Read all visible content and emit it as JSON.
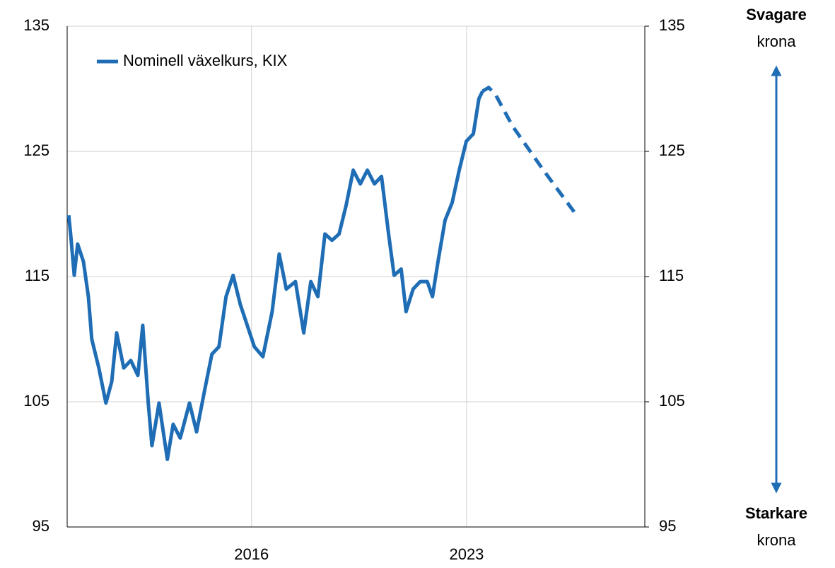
{
  "chart_data": {
    "type": "line",
    "xlim": [
      2010,
      2028.8
    ],
    "xticks": [
      2016,
      2023
    ],
    "ylim": [
      95,
      135
    ],
    "yticks": [
      95,
      105,
      115,
      125,
      135
    ],
    "y2lim": [
      95,
      135
    ],
    "y2ticks": [
      95,
      105,
      115,
      125,
      135
    ],
    "grid": true,
    "legend": "upper left",
    "series": [
      {
        "name": "Nominell växelkurs, KIX",
        "color": "#1f6db5",
        "x": [
          2010.05,
          2010.12,
          2010.23,
          2010.34,
          2010.53,
          2010.69,
          2010.8,
          2011.03,
          2011.26,
          2011.45,
          2011.61,
          2011.84,
          2012.07,
          2012.3,
          2012.46,
          2012.64,
          2012.76,
          2012.99,
          2013.26,
          2013.45,
          2013.68,
          2013.98,
          2014.21,
          2014.48,
          2014.71,
          2014.94,
          2015.17,
          2015.4,
          2015.63,
          2015.86,
          2016.09,
          2016.37,
          2016.67,
          2016.9,
          2017.13,
          2017.43,
          2017.7,
          2017.93,
          2018.16,
          2018.39,
          2018.62,
          2018.85,
          2019.08,
          2019.31,
          2019.54,
          2019.77,
          2020.0,
          2020.23,
          2020.46,
          2020.64,
          2020.87,
          2021.03,
          2021.26,
          2021.49,
          2021.72,
          2021.89,
          2022.07,
          2022.3,
          2022.53,
          2022.76,
          2022.99,
          2023.22,
          2023.4,
          2023.52
        ],
        "values": [
          119.9,
          118.2,
          115.1,
          117.6,
          116.2,
          113.4,
          110.0,
          107.7,
          104.9,
          106.6,
          110.5,
          107.7,
          108.3,
          107.1,
          111.1,
          104.9,
          101.5,
          104.9,
          100.4,
          103.2,
          102.1,
          104.9,
          102.6,
          106.0,
          108.8,
          109.4,
          113.4,
          115.1,
          112.8,
          111.1,
          109.4,
          108.6,
          112.2,
          116.8,
          114.0,
          114.6,
          110.5,
          114.6,
          113.4,
          118.4,
          117.9,
          118.4,
          120.7,
          123.5,
          122.4,
          123.5,
          122.4,
          123.0,
          118.4,
          115.1,
          115.6,
          112.2,
          114.0,
          114.6,
          114.6,
          113.4,
          116.2,
          119.5,
          120.9,
          123.5,
          125.8,
          126.4,
          129.2,
          129.8
        ]
      },
      {
        "color": "#1f6db5",
        "dashed": true,
        "x": [
          2023.52,
          2023.72,
          2023.95,
          2024.5,
          2025.5,
          2026.55
        ],
        "values": [
          129.8,
          130.1,
          129.5,
          127.0,
          123.5,
          120.0
        ]
      }
    ],
    "annotations": {
      "top_bold": "Svagare",
      "top": "krona",
      "bottom_bold": "Starkare",
      "bottom": "krona"
    }
  }
}
